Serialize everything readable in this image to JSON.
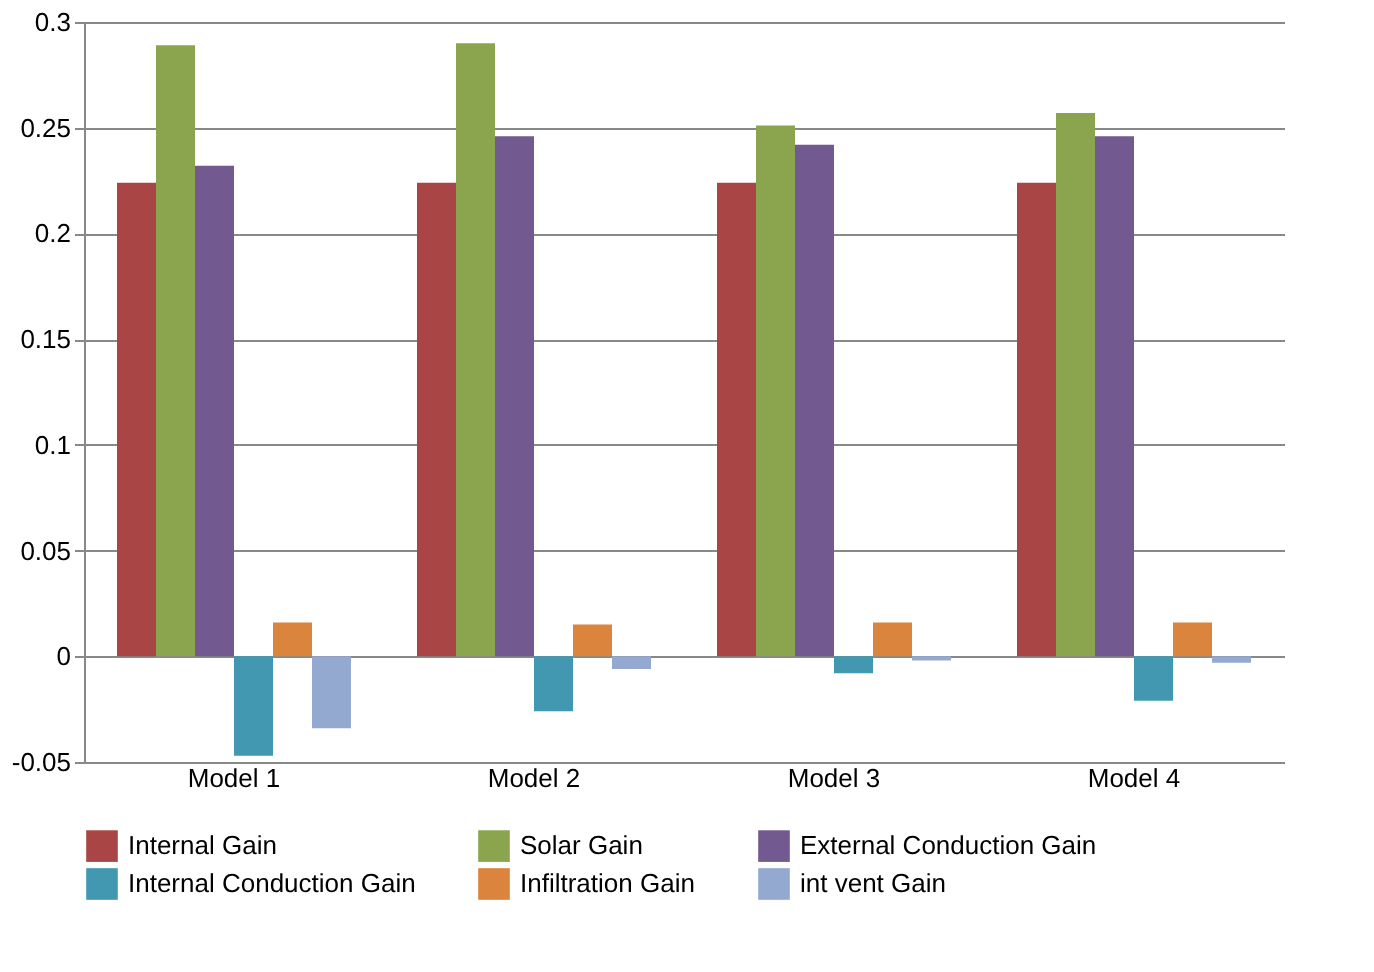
{
  "chart_data": {
    "type": "bar",
    "categories": [
      "Model 1",
      "Model 2",
      "Model 3",
      "Model 4"
    ],
    "series": [
      {
        "name": "Internal Gain",
        "color": "#a94645",
        "values": [
          0.224,
          0.224,
          0.224,
          0.224
        ]
      },
      {
        "name": "Solar Gain",
        "color": "#8ba54e",
        "values": [
          0.289,
          0.29,
          0.251,
          0.257
        ]
      },
      {
        "name": "External Conduction Gain",
        "color": "#72598f",
        "values": [
          0.232,
          0.246,
          0.242,
          0.246
        ]
      },
      {
        "name": "Internal Conduction Gain",
        "color": "#4298b0",
        "values": [
          -0.047,
          -0.026,
          -0.008,
          -0.021
        ]
      },
      {
        "name": "Infiltration Gain",
        "color": "#db843d",
        "values": [
          0.016,
          0.015,
          0.016,
          0.016
        ]
      },
      {
        "name": "int vent Gain",
        "color": "#93a9d0",
        "values": [
          -0.034,
          -0.006,
          -0.002,
          -0.003
        ]
      }
    ],
    "ylim": [
      -0.05,
      0.3
    ],
    "yticks": [
      -0.05,
      0,
      0.05,
      0.1,
      0.15,
      0.2,
      0.25,
      0.3
    ],
    "grid": "y",
    "legend": "bottom"
  }
}
